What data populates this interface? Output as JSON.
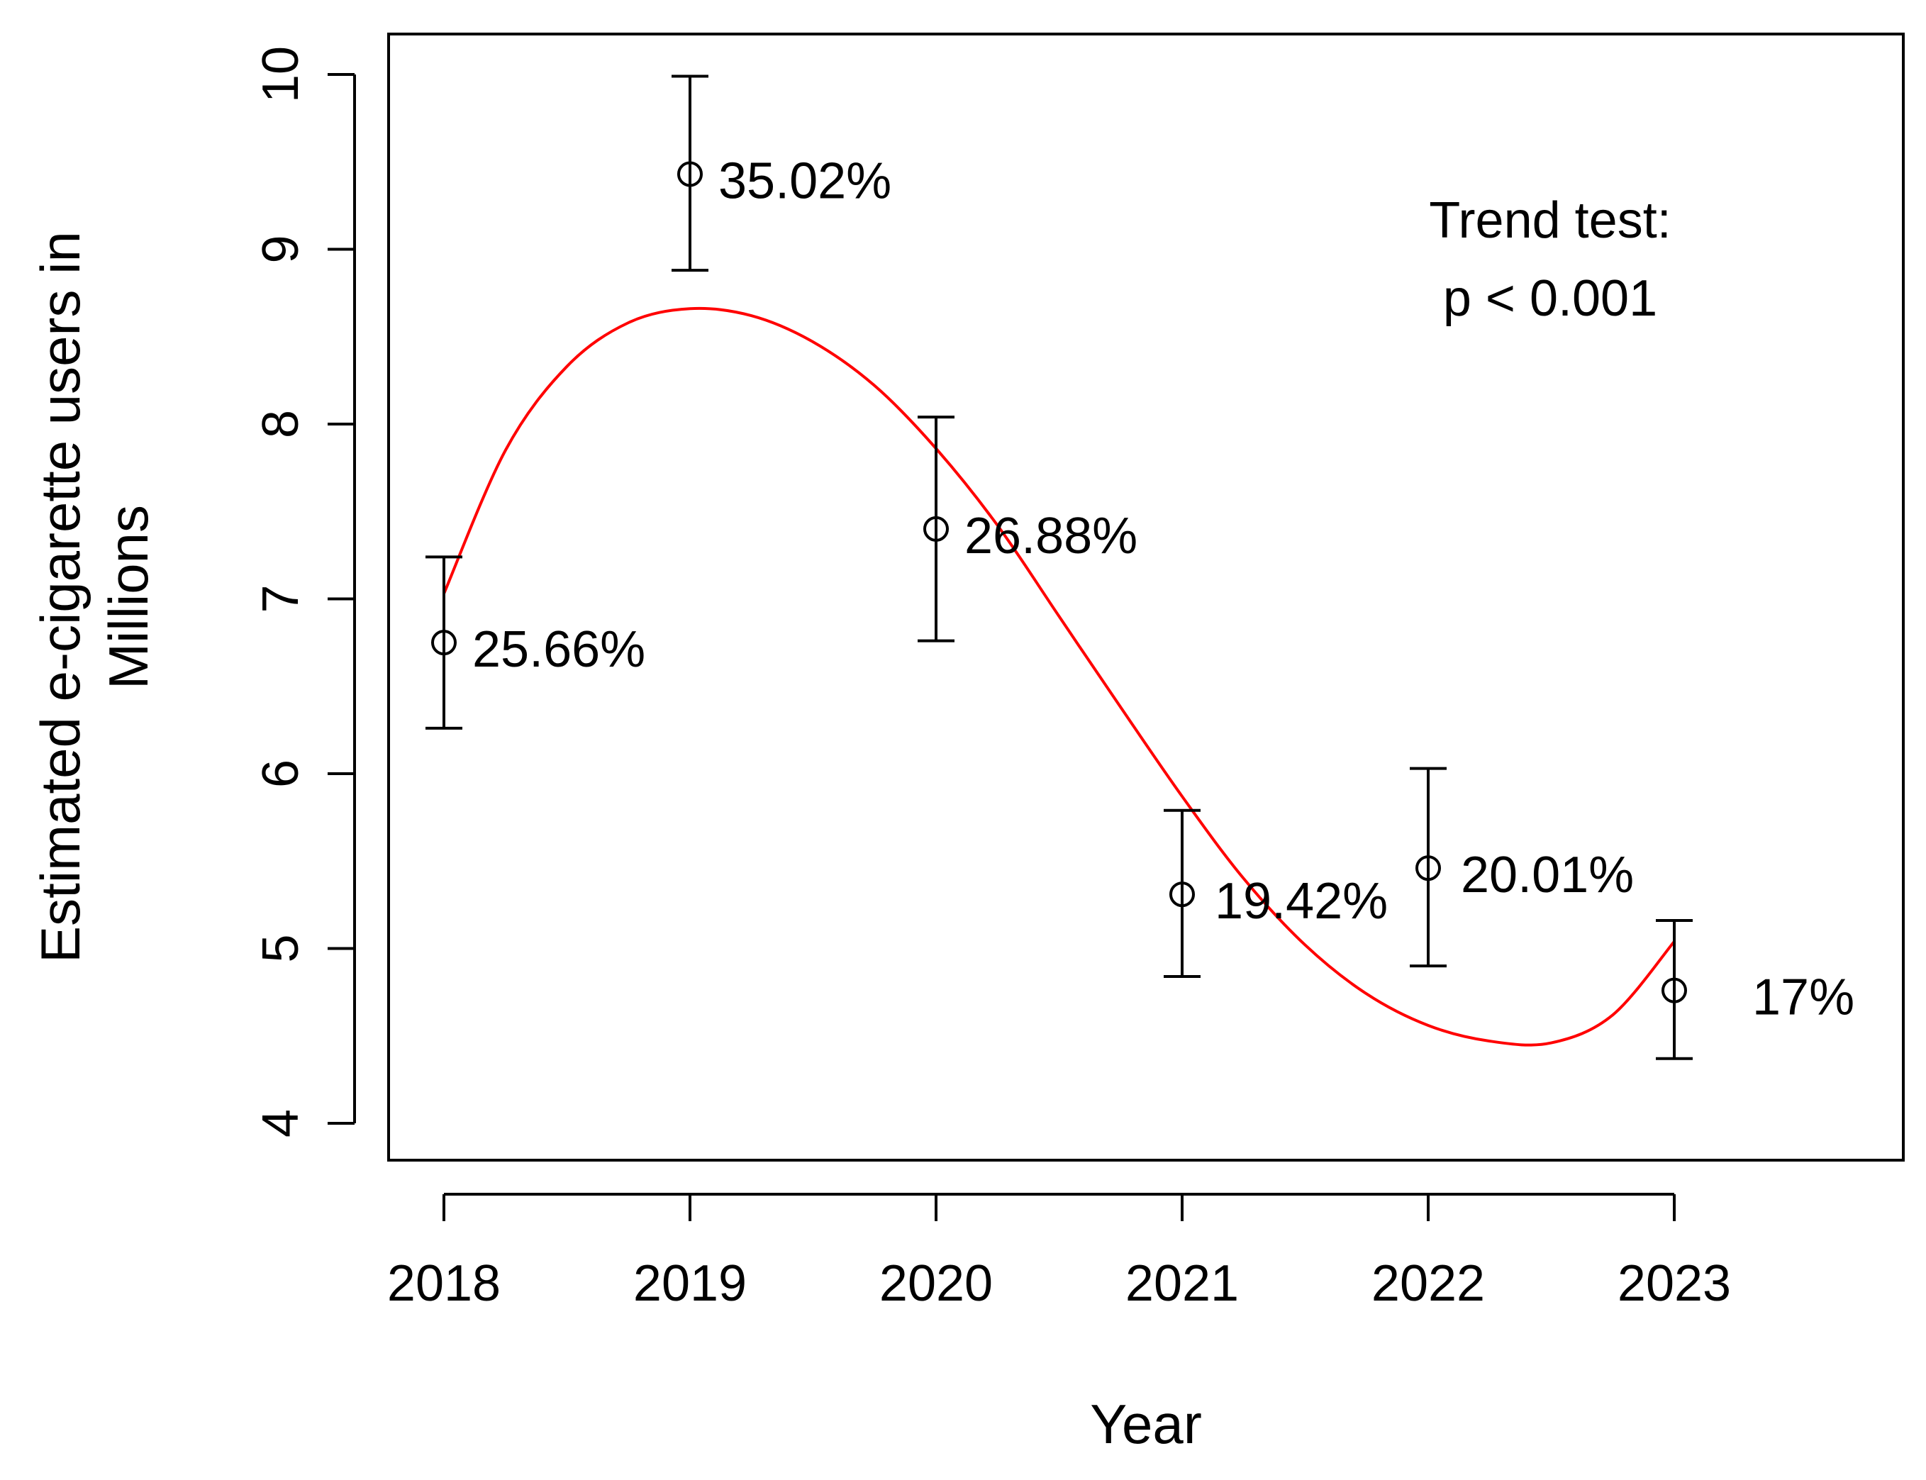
{
  "chart_data": {
    "type": "scatter",
    "xlabel": "Year",
    "ylabel": [
      "Estimated e-cigarette users in",
      "Millions"
    ],
    "x": [
      "2018",
      "2019",
      "2020",
      "2021",
      "2022",
      "2023"
    ],
    "ylim": [
      4,
      10
    ],
    "yticks": [
      "4",
      "5",
      "6",
      "7",
      "8",
      "9",
      "10"
    ],
    "grid": false,
    "points": [
      {
        "x": "2018",
        "y": 6.75,
        "lower": 6.26,
        "upper": 7.24,
        "label": "25.66%"
      },
      {
        "x": "2019",
        "y": 9.43,
        "lower": 8.88,
        "upper": 9.99,
        "label": "35.02%"
      },
      {
        "x": "2020",
        "y": 7.4,
        "lower": 6.76,
        "upper": 8.04,
        "label": "26.88%"
      },
      {
        "x": "2021",
        "y": 5.31,
        "lower": 4.84,
        "upper": 5.79,
        "label": "19.42%"
      },
      {
        "x": "2022",
        "y": 5.46,
        "lower": 4.9,
        "upper": 6.03,
        "label": "20.01%"
      },
      {
        "x": "2023",
        "y": 4.76,
        "lower": 4.37,
        "upper": 5.16,
        "label": "17%"
      }
    ],
    "trend_curve": {
      "color": "#ff0000",
      "points": [
        {
          "x": 2018.0,
          "y": 7.03
        },
        {
          "x": 2018.25,
          "y": 7.85
        },
        {
          "x": 2018.5,
          "y": 8.33
        },
        {
          "x": 2018.75,
          "y": 8.58
        },
        {
          "x": 2019.0,
          "y": 8.66
        },
        {
          "x": 2019.25,
          "y": 8.62
        },
        {
          "x": 2019.5,
          "y": 8.47
        },
        {
          "x": 2019.75,
          "y": 8.22
        },
        {
          "x": 2020.0,
          "y": 7.86
        },
        {
          "x": 2020.25,
          "y": 7.42
        },
        {
          "x": 2020.5,
          "y": 6.9
        },
        {
          "x": 2020.75,
          "y": 6.38
        },
        {
          "x": 2021.0,
          "y": 5.87
        },
        {
          "x": 2021.25,
          "y": 5.4
        },
        {
          "x": 2021.5,
          "y": 5.02
        },
        {
          "x": 2021.75,
          "y": 4.74
        },
        {
          "x": 2022.0,
          "y": 4.56
        },
        {
          "x": 2022.25,
          "y": 4.47
        },
        {
          "x": 2022.5,
          "y": 4.46
        },
        {
          "x": 2022.75,
          "y": 4.62
        },
        {
          "x": 2023.0,
          "y": 5.04
        }
      ]
    },
    "annotation": [
      "Trend test:",
      "p < 0.001"
    ]
  }
}
